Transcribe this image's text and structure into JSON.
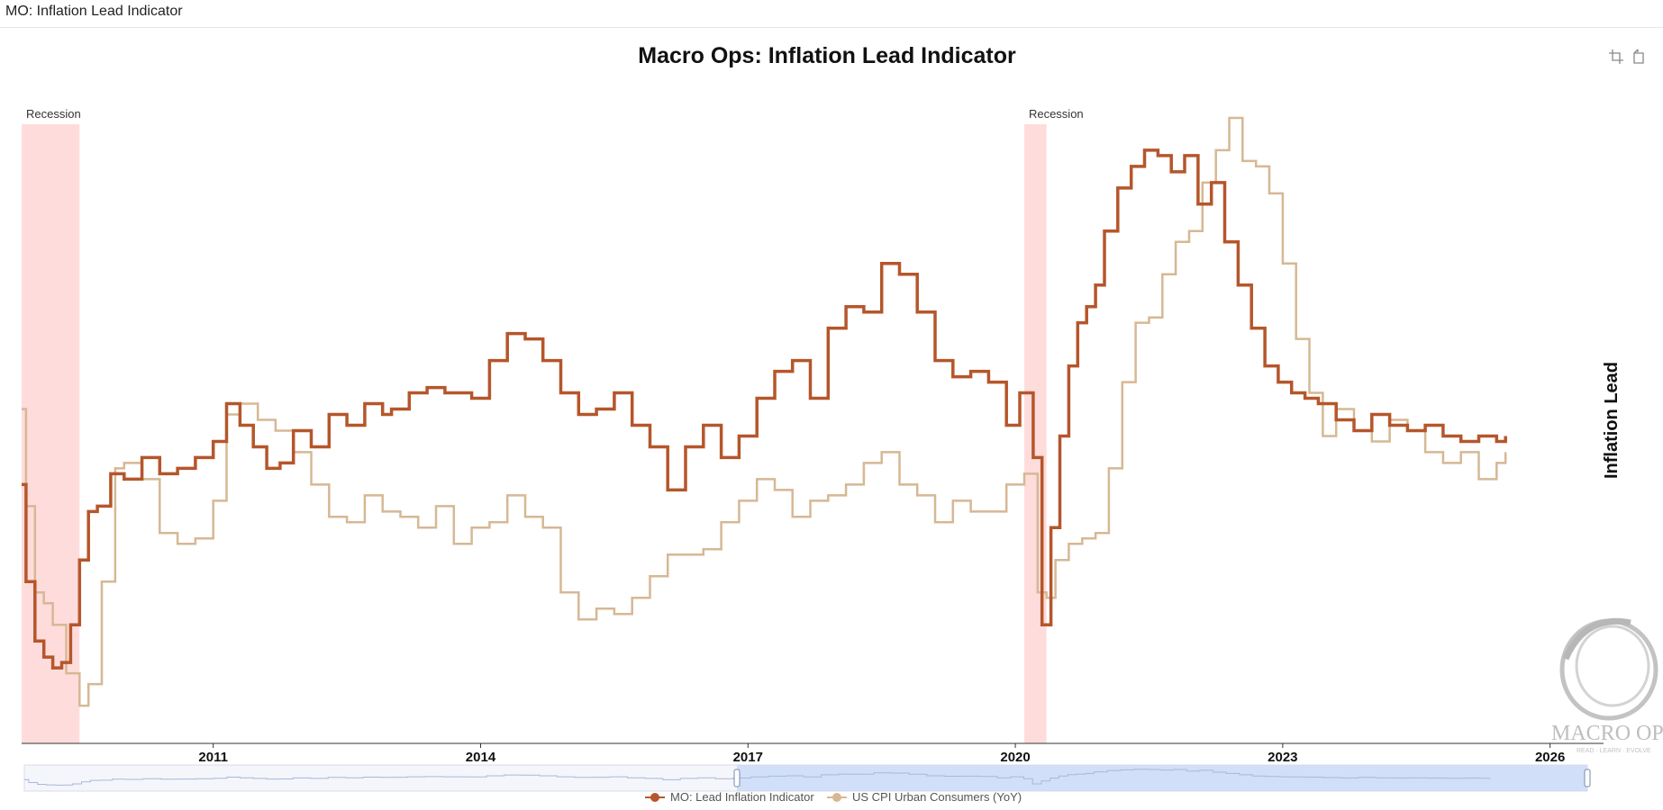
{
  "window": {
    "title": "MO: Inflation Lead Indicator"
  },
  "toolbar": {
    "icons": [
      "zoom-select-icon",
      "zoom-reset-icon"
    ]
  },
  "watermark": {
    "text": "MACRO OPS",
    "tagline": "READ · LEARN · EVOLVE"
  },
  "colors": {
    "lead": "#b5562b",
    "cpi": "#d6b894",
    "recession": "#ffdcdc",
    "slider": "#c9d9f7"
  },
  "chart_data": {
    "type": "line",
    "step": true,
    "title": "Macro Ops: Inflation Lead Indicator",
    "ylabel": "Inflation Lead",
    "xlabel": "",
    "xlim": [
      2008.85,
      2026.6
    ],
    "ylim": [
      -2.5,
      9.5
    ],
    "x_ticks": [
      2011,
      2014,
      2017,
      2020,
      2023,
      2026
    ],
    "x_tick_labels": [
      "2011",
      "2014",
      "2017",
      "2020",
      "2023",
      "2026"
    ],
    "recessions": [
      {
        "label": "Recession",
        "start": 2008.85,
        "end": 2009.5
      },
      {
        "label": "Recession",
        "start": 2020.1,
        "end": 2020.35
      }
    ],
    "legend": [
      "MO: Lead Inflation Indicator",
      "US CPI Urban Consumers (YoY)"
    ],
    "series": [
      {
        "name": "MO: Lead Inflation Indicator",
        "color": "#b5562b",
        "x": [
          2008.85,
          2008.9,
          2009.0,
          2009.1,
          2009.2,
          2009.3,
          2009.4,
          2009.5,
          2009.6,
          2009.7,
          2009.85,
          2010.0,
          2010.2,
          2010.4,
          2010.6,
          2010.8,
          2011.0,
          2011.15,
          2011.3,
          2011.45,
          2011.6,
          2011.75,
          2011.9,
          2012.1,
          2012.3,
          2012.5,
          2012.7,
          2012.9,
          2013.0,
          2013.2,
          2013.4,
          2013.6,
          2013.9,
          2014.1,
          2014.3,
          2014.5,
          2014.7,
          2014.9,
          2015.1,
          2015.3,
          2015.5,
          2015.7,
          2015.9,
          2016.1,
          2016.3,
          2016.5,
          2016.7,
          2016.9,
          2017.1,
          2017.3,
          2017.5,
          2017.7,
          2017.9,
          2018.1,
          2018.3,
          2018.5,
          2018.7,
          2018.9,
          2019.1,
          2019.3,
          2019.5,
          2019.7,
          2019.9,
          2020.05,
          2020.2,
          2020.3,
          2020.4,
          2020.5,
          2020.6,
          2020.7,
          2020.8,
          2020.9,
          2021.0,
          2021.15,
          2021.3,
          2021.45,
          2021.6,
          2021.75,
          2021.9,
          2022.05,
          2022.2,
          2022.35,
          2022.5,
          2022.65,
          2022.8,
          2022.95,
          2023.1,
          2023.25,
          2023.4,
          2023.6,
          2023.8,
          2024.0,
          2024.2,
          2024.4,
          2024.6,
          2024.8,
          2025.0,
          2025.2,
          2025.4,
          2025.5
        ],
        "y": [
          2.3,
          0.5,
          -0.6,
          -0.9,
          -1.1,
          -1.0,
          -0.3,
          0.9,
          1.8,
          1.9,
          2.5,
          2.4,
          2.8,
          2.5,
          2.6,
          2.8,
          3.1,
          3.8,
          3.4,
          3.0,
          2.6,
          2.7,
          3.3,
          3.0,
          3.6,
          3.4,
          3.8,
          3.6,
          3.7,
          4.0,
          4.1,
          4.0,
          3.9,
          4.6,
          5.1,
          5.0,
          4.6,
          4.0,
          3.6,
          3.7,
          4.0,
          3.4,
          3.0,
          2.2,
          3.0,
          3.4,
          2.8,
          3.2,
          3.9,
          4.4,
          4.6,
          3.9,
          5.2,
          5.6,
          5.5,
          6.4,
          6.2,
          5.5,
          4.6,
          4.3,
          4.4,
          4.2,
          3.4,
          4.0,
          2.8,
          -0.3,
          1.5,
          3.2,
          4.5,
          5.3,
          5.6,
          6.0,
          7.0,
          7.8,
          8.2,
          8.5,
          8.4,
          8.1,
          8.4,
          7.5,
          7.9,
          6.8,
          6.0,
          5.2,
          4.5,
          4.2,
          4.0,
          3.9,
          3.8,
          3.5,
          3.3,
          3.6,
          3.4,
          3.3,
          3.4,
          3.2,
          3.1,
          3.2,
          3.1,
          3.2
        ]
      },
      {
        "name": "US CPI Urban Consumers (YoY)",
        "color": "#d6b894",
        "x": [
          2008.85,
          2008.9,
          2009.0,
          2009.1,
          2009.2,
          2009.35,
          2009.5,
          2009.6,
          2009.75,
          2009.9,
          2010.0,
          2010.2,
          2010.4,
          2010.6,
          2010.8,
          2011.0,
          2011.15,
          2011.3,
          2011.5,
          2011.7,
          2011.9,
          2012.1,
          2012.3,
          2012.5,
          2012.7,
          2012.9,
          2013.1,
          2013.3,
          2013.5,
          2013.7,
          2013.9,
          2014.1,
          2014.3,
          2014.5,
          2014.7,
          2014.9,
          2015.1,
          2015.3,
          2015.5,
          2015.7,
          2015.9,
          2016.1,
          2016.3,
          2016.5,
          2016.7,
          2016.9,
          2017.1,
          2017.3,
          2017.5,
          2017.7,
          2017.9,
          2018.1,
          2018.3,
          2018.5,
          2018.7,
          2018.9,
          2019.1,
          2019.3,
          2019.5,
          2019.7,
          2019.9,
          2020.1,
          2020.25,
          2020.35,
          2020.45,
          2020.6,
          2020.75,
          2020.9,
          2021.05,
          2021.2,
          2021.35,
          2021.5,
          2021.65,
          2021.8,
          2021.95,
          2022.1,
          2022.25,
          2022.4,
          2022.55,
          2022.7,
          2022.85,
          2023.0,
          2023.15,
          2023.3,
          2023.45,
          2023.6,
          2023.8,
          2024.0,
          2024.2,
          2024.4,
          2024.6,
          2024.8,
          2025.0,
          2025.2,
          2025.4,
          2025.5
        ],
        "y": [
          3.7,
          1.9,
          0.3,
          0.1,
          -0.3,
          -1.2,
          -1.8,
          -1.4,
          0.5,
          2.6,
          2.7,
          2.4,
          1.4,
          1.2,
          1.3,
          2.0,
          3.6,
          3.8,
          3.5,
          3.3,
          2.9,
          2.3,
          1.7,
          1.6,
          2.1,
          1.8,
          1.7,
          1.5,
          1.9,
          1.2,
          1.5,
          1.6,
          2.1,
          1.7,
          1.5,
          0.3,
          -0.2,
          0.0,
          -0.1,
          0.2,
          0.6,
          1.0,
          1.0,
          1.1,
          1.6,
          2.0,
          2.4,
          2.2,
          1.7,
          2.0,
          2.1,
          2.3,
          2.7,
          2.9,
          2.3,
          2.1,
          1.6,
          2.0,
          1.8,
          1.8,
          2.3,
          2.5,
          0.3,
          0.2,
          0.9,
          1.2,
          1.3,
          1.4,
          2.6,
          4.2,
          5.3,
          5.4,
          6.2,
          6.8,
          7.0,
          7.9,
          8.5,
          9.1,
          8.3,
          8.2,
          7.7,
          6.4,
          5.0,
          4.0,
          3.2,
          3.7,
          3.3,
          3.1,
          3.5,
          3.3,
          2.9,
          2.7,
          2.9,
          2.4,
          2.7,
          2.9
        ]
      }
    ]
  }
}
